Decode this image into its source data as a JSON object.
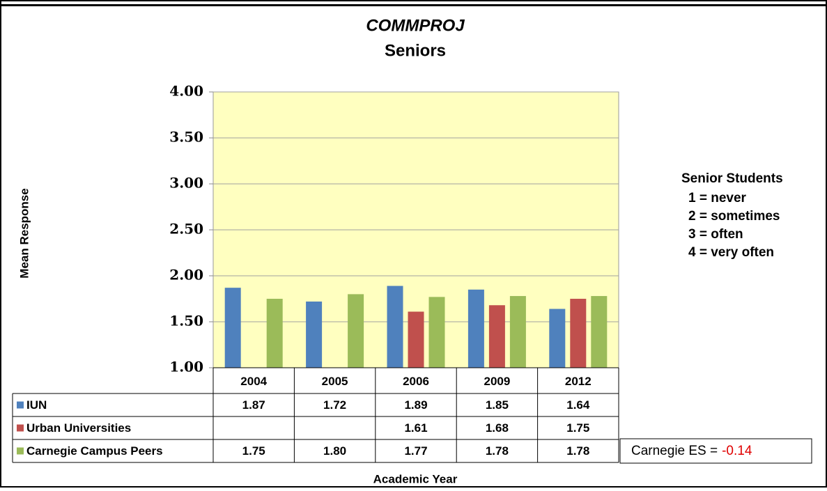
{
  "chart_data": {
    "type": "bar",
    "title": "COMMPROJ",
    "subtitle": "Seniors",
    "y_label": "Mean Response",
    "x_label": "Academic Year",
    "categories": [
      "2004",
      "2005",
      "2006",
      "2009",
      "2012"
    ],
    "series": [
      {
        "name": "IUN",
        "color": "#4f81bd",
        "values": [
          1.87,
          1.72,
          1.89,
          1.85,
          1.64
        ],
        "value_labels": [
          "1.87",
          "1.72",
          "1.89",
          "1.85",
          "1.64"
        ]
      },
      {
        "name": "Urban Universities",
        "color": "#c0504d",
        "values": [
          null,
          null,
          1.61,
          1.68,
          1.75
        ],
        "value_labels": [
          null,
          null,
          "1.61",
          "1.68",
          "1.75"
        ]
      },
      {
        "name": "Carnegie Campus Peers",
        "color": "#9bbb59",
        "values": [
          1.75,
          1.8,
          1.77,
          1.78,
          1.78
        ],
        "value_labels": [
          "1.75",
          "1.80",
          "1.77",
          "1.78",
          "1.78"
        ]
      }
    ],
    "ylim": [
      1,
      4
    ],
    "yticks": [
      {
        "value": 1,
        "label": "1.00"
      },
      {
        "value": 1.5,
        "label": "1.50"
      },
      {
        "value": 2,
        "label": "2.00"
      },
      {
        "value": 2.5,
        "label": "2.50"
      },
      {
        "value": 3,
        "label": "3.00"
      },
      {
        "value": 3.5,
        "label": "3.50"
      },
      {
        "value": 4,
        "label": "4.00"
      }
    ],
    "grid": true,
    "plot_background": "#ffffc0",
    "scale_note": {
      "title": "Senior Students",
      "lines": [
        "1 = never",
        "2 = sometimes",
        "3 = often",
        "4 = very often"
      ]
    },
    "effect_size": {
      "label": "Carnegie ES =",
      "value": -0.14
    }
  }
}
